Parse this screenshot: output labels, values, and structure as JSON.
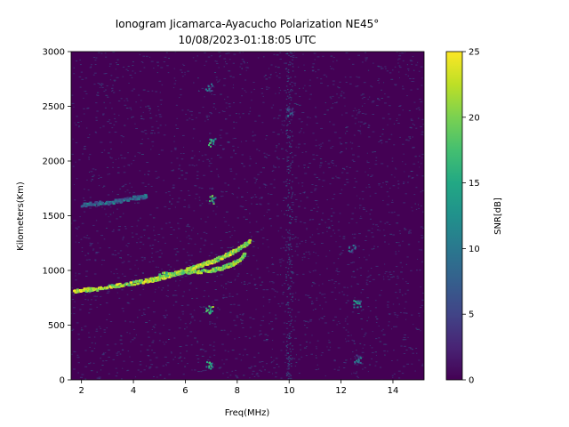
{
  "chart_data": {
    "type": "heatmap",
    "title": "Ionogram Jicamarca-Ayacucho Polarization NE45°",
    "subtitle": "10/08/2023-01:18:05 UTC",
    "xlabel": "Freq(MHz)",
    "ylabel": "Kilometers(Km)",
    "xlim": [
      1.6,
      15.2
    ],
    "ylim": [
      0,
      3000
    ],
    "x_ticks": [
      2,
      4,
      6,
      8,
      10,
      12,
      14
    ],
    "y_ticks": [
      0,
      500,
      1000,
      1500,
      2000,
      2500,
      3000
    ],
    "colorbar": {
      "label": "SNR[dB]",
      "range": [
        0,
        25
      ],
      "ticks": [
        0,
        5,
        10,
        15,
        20,
        25
      ],
      "colormap": "viridis"
    },
    "traces": [
      {
        "points": [
          [
            1.7,
            810
          ],
          [
            2.5,
            830
          ],
          [
            3.5,
            865
          ],
          [
            4.5,
            905
          ],
          [
            5.0,
            930
          ],
          [
            5.5,
            965
          ],
          [
            6.0,
            1000
          ],
          [
            6.5,
            1040
          ],
          [
            7.0,
            1080
          ],
          [
            7.5,
            1130
          ],
          [
            8.0,
            1190
          ],
          [
            8.5,
            1270
          ]
        ],
        "snr": 25
      },
      {
        "points": [
          [
            5.0,
            960
          ],
          [
            6.0,
            985
          ],
          [
            7.0,
            1000
          ],
          [
            7.5,
            1030
          ],
          [
            8.0,
            1080
          ],
          [
            8.3,
            1150
          ]
        ],
        "snr": 24
      },
      {
        "points": [
          [
            2.0,
            1600
          ],
          [
            3.0,
            1620
          ],
          [
            4.0,
            1660
          ],
          [
            4.5,
            1680
          ]
        ],
        "snr": 12
      }
    ],
    "patches": [
      {
        "freq": 6.9,
        "range": 650,
        "snr": 22
      },
      {
        "freq": 7.0,
        "range": 1650,
        "snr": 20
      },
      {
        "freq": 7.0,
        "range": 2170,
        "snr": 18
      },
      {
        "freq": 6.9,
        "range": 2670,
        "snr": 12
      },
      {
        "freq": 6.9,
        "range": 130,
        "snr": 18
      },
      {
        "freq": 10.0,
        "range": 2450,
        "snr": 10
      },
      {
        "freq": 12.6,
        "range": 700,
        "snr": 16
      },
      {
        "freq": 12.4,
        "range": 1200,
        "snr": 12
      },
      {
        "freq": 12.6,
        "range": 200,
        "snr": 12
      }
    ]
  }
}
